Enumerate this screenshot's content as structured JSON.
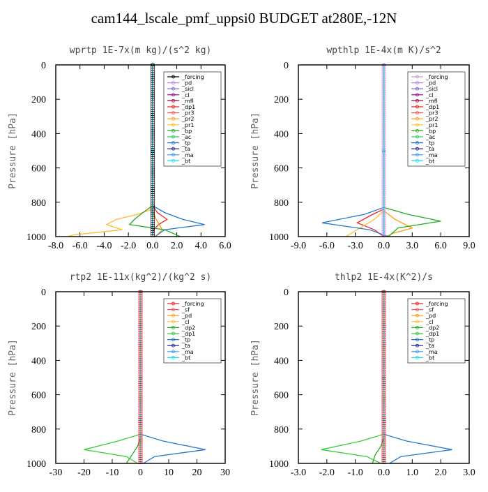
{
  "figure_title": "cam144_lscale_pmf_uppsi0  BUDGET at280E,-12N",
  "chart_data": [
    {
      "type": "line",
      "title": "wprtp  1E-7x(m kg)/(s^2 kg)",
      "ylabel": "Pressure [hPa]",
      "xlim": [
        -8,
        6
      ],
      "xticks": [
        "-8.0",
        "-6.0",
        "-4.0",
        "-2.0",
        "0.0",
        "2.0",
        "4.0",
        "6.0"
      ],
      "ylim": [
        1000,
        0
      ],
      "yticks": [
        "0",
        "200",
        "400",
        "600",
        "800",
        "1000"
      ],
      "legend_position": "top-right",
      "series": [
        {
          "name": "_forcing",
          "color": "#000000",
          "marker": "o",
          "p": [
            0,
            500,
            1000
          ],
          "x": [
            0,
            0,
            0
          ]
        },
        {
          "name": "_pd",
          "color": "#bb88dd",
          "marker": "s",
          "p": [
            0,
            500,
            1000
          ],
          "x": [
            0,
            0,
            0
          ]
        },
        {
          "name": "_sicl",
          "color": "#7755cc",
          "marker": "^",
          "p": [
            0,
            500,
            1000
          ],
          "x": [
            0,
            0,
            0
          ]
        },
        {
          "name": "_cl",
          "color": "#990099",
          "marker": ">",
          "p": [
            0,
            500,
            1000
          ],
          "x": [
            0,
            0,
            0
          ]
        },
        {
          "name": "_mfl",
          "color": "#aa0044",
          "marker": "<",
          "p": [
            0,
            500,
            1000
          ],
          "x": [
            0,
            0,
            0
          ]
        },
        {
          "name": "_dp1",
          "color": "#ee2222",
          "marker": "o",
          "p": [
            0,
            820,
            860,
            900,
            930,
            960,
            990,
            1000
          ],
          "x": [
            0,
            0,
            0.4,
            1.2,
            0.5,
            0.1,
            0,
            0
          ]
        },
        {
          "name": "_pr3",
          "color": "#ff5555",
          "marker": "s",
          "p": [
            0,
            500,
            1000
          ],
          "x": [
            0,
            0,
            0
          ]
        },
        {
          "name": "_pr2",
          "color": "#ff9900",
          "marker": "^",
          "p": [
            0,
            850,
            900,
            960,
            990,
            1000
          ],
          "x": [
            0,
            0,
            0.3,
            0.8,
            0.4,
            0.2
          ]
        },
        {
          "name": "_pr1",
          "color": "#ffbb33",
          "marker": "v",
          "p": [
            0,
            840,
            870,
            900,
            930,
            960,
            990,
            1000
          ],
          "x": [
            0,
            0,
            -1.2,
            -3.0,
            -3.8,
            -2.5,
            -6.5,
            -7.0
          ]
        },
        {
          "name": "_bp",
          "color": "#22aa22",
          "marker": "x",
          "p": [
            0,
            820,
            860,
            900,
            930,
            960,
            1000
          ],
          "x": [
            0,
            0,
            -0.8,
            -1.5,
            -1.9,
            1.0,
            2.3
          ]
        },
        {
          "name": "_ac",
          "color": "#33cc66",
          "marker": "o",
          "p": [
            0,
            500,
            1000
          ],
          "x": [
            0,
            0,
            0
          ]
        },
        {
          "name": "_tp",
          "color": "#2277cc",
          "marker": "x",
          "p": [
            0,
            820,
            860,
            900,
            930,
            960,
            1000
          ],
          "x": [
            0,
            0,
            1.0,
            2.5,
            4.3,
            1.0,
            0.2
          ]
        },
        {
          "name": "_ta",
          "color": "#111188",
          "marker": "+",
          "p": [
            0,
            500,
            1000
          ],
          "x": [
            0,
            0,
            0
          ]
        },
        {
          "name": "_ma",
          "color": "#3399ff",
          "marker": "-",
          "p": [
            0,
            500,
            1000
          ],
          "x": [
            0,
            0,
            0
          ]
        },
        {
          "name": "_bt",
          "color": "#22ddee",
          "marker": "d",
          "p": [
            0,
            500,
            1000
          ],
          "x": [
            0,
            0,
            0
          ]
        }
      ]
    },
    {
      "type": "line",
      "title": "wpthlp  1E-4x(m K)/s^2",
      "ylabel": "Pressure [hPa]",
      "xlim": [
        -9,
        9
      ],
      "xticks": [
        "-9.0",
        "-6.0",
        "-3.0",
        "0.0",
        "3.0",
        "6.0",
        "9.0"
      ],
      "ylim": [
        1000,
        0
      ],
      "yticks": [
        "0",
        "200",
        "400",
        "600",
        "800",
        "1000"
      ],
      "legend_position": "top-right",
      "series": [
        {
          "name": "_forcing",
          "color": "#cc99dd",
          "marker": "o",
          "p": [
            0,
            500,
            1000
          ],
          "x": [
            0,
            0,
            0
          ]
        },
        {
          "name": "_pd",
          "color": "#bb88dd",
          "marker": "s",
          "p": [
            0,
            500,
            1000
          ],
          "x": [
            0,
            0,
            0
          ]
        },
        {
          "name": "_sicl",
          "color": "#7755cc",
          "marker": "^",
          "p": [
            0,
            500,
            1000
          ],
          "x": [
            0,
            0,
            0
          ]
        },
        {
          "name": "_cl",
          "color": "#990099",
          "marker": ">",
          "p": [
            0,
            500,
            1000
          ],
          "x": [
            0,
            0,
            0
          ]
        },
        {
          "name": "_mfl",
          "color": "#aa0044",
          "marker": "<",
          "p": [
            0,
            500,
            1000
          ],
          "x": [
            0,
            0,
            0
          ]
        },
        {
          "name": "_dp1",
          "color": "#ee2222",
          "marker": "o",
          "p": [
            0,
            840,
            880,
            920,
            960,
            1000
          ],
          "x": [
            0,
            0,
            -1.5,
            -2.8,
            -1.0,
            0
          ]
        },
        {
          "name": "_pr3",
          "color": "#ff5555",
          "marker": "s",
          "p": [
            0,
            500,
            1000
          ],
          "x": [
            0,
            0,
            0
          ]
        },
        {
          "name": "_pr2",
          "color": "#ff9900",
          "marker": "^",
          "p": [
            0,
            850,
            900,
            950,
            980,
            1000
          ],
          "x": [
            0,
            0,
            1.2,
            3.0,
            1.0,
            0.3
          ]
        },
        {
          "name": "_pr1",
          "color": "#ffbb33",
          "marker": "v",
          "p": [
            0,
            850,
            900,
            950,
            1000
          ],
          "x": [
            0,
            0,
            -1.0,
            -2.5,
            -4.0
          ]
        },
        {
          "name": "_bp",
          "color": "#22aa22",
          "marker": "x",
          "p": [
            0,
            830,
            870,
            910,
            950,
            1000
          ],
          "x": [
            0,
            0,
            2.5,
            6.0,
            1.5,
            0.5
          ]
        },
        {
          "name": "_ac",
          "color": "#33cc66",
          "marker": "o",
          "p": [
            0,
            500,
            1000
          ],
          "x": [
            0,
            0,
            0
          ]
        },
        {
          "name": "_tp",
          "color": "#2277cc",
          "marker": "x",
          "p": [
            0,
            830,
            870,
            920,
            960,
            1000
          ],
          "x": [
            0,
            0,
            -2.0,
            -6.5,
            -1.5,
            0.5
          ]
        },
        {
          "name": "_ta",
          "color": "#111188",
          "marker": "+",
          "p": [
            0,
            500,
            1000
          ],
          "x": [
            0,
            0,
            0
          ]
        },
        {
          "name": "_ma",
          "color": "#3399ff",
          "marker": "-",
          "p": [
            0,
            500,
            1000
          ],
          "x": [
            0,
            0,
            0
          ]
        },
        {
          "name": "_bt",
          "color": "#22ddee",
          "marker": "d",
          "p": [
            0,
            500,
            1000
          ],
          "x": [
            0,
            0,
            0
          ]
        }
      ]
    },
    {
      "type": "line",
      "title": "rtp2  1E-11x(kg^2)/(kg^2 s)",
      "ylabel": "Pressure [hPa]",
      "xlim": [
        -30,
        30
      ],
      "xticks": [
        "-30",
        "-20",
        "-10",
        "0",
        "10",
        "20",
        "30"
      ],
      "ylim": [
        1000,
        0
      ],
      "yticks": [
        "0",
        "200",
        "400",
        "600",
        "800",
        "1000"
      ],
      "legend_position": "top-right",
      "series": [
        {
          "name": "_forcing",
          "color": "#ee2222",
          "marker": "o",
          "p": [
            0,
            500,
            1000
          ],
          "x": [
            0,
            0,
            0
          ]
        },
        {
          "name": "_sf",
          "color": "#ff5555",
          "marker": "s",
          "p": [
            0,
            500,
            1000
          ],
          "x": [
            0,
            0,
            0
          ]
        },
        {
          "name": "_pd",
          "color": "#ff9900",
          "marker": "^",
          "p": [
            0,
            500,
            1000
          ],
          "x": [
            0,
            0,
            0
          ]
        },
        {
          "name": "_cl",
          "color": "#ffbb33",
          "marker": "v",
          "p": [
            0,
            500,
            1000
          ],
          "x": [
            0,
            0,
            0
          ]
        },
        {
          "name": "_dp2",
          "color": "#22aa22",
          "marker": "x",
          "p": [
            0,
            850,
            900,
            950,
            1000
          ],
          "x": [
            0,
            0,
            -1.0,
            -3.0,
            -5.0
          ]
        },
        {
          "name": "_dp1",
          "color": "#33cc33",
          "marker": "o",
          "p": [
            0,
            830,
            870,
            920,
            960,
            1000
          ],
          "x": [
            0,
            0,
            -8.0,
            -20.0,
            -5.0,
            -1.0
          ]
        },
        {
          "name": "_tp",
          "color": "#2277cc",
          "marker": "x",
          "p": [
            0,
            830,
            870,
            920,
            960,
            1000
          ],
          "x": [
            0,
            0,
            8.0,
            23.0,
            5.0,
            1.0
          ]
        },
        {
          "name": "_ta",
          "color": "#111188",
          "marker": "+",
          "p": [
            0,
            500,
            1000
          ],
          "x": [
            0,
            0,
            0
          ]
        },
        {
          "name": "_ma",
          "color": "#3399ff",
          "marker": "-",
          "p": [
            0,
            500,
            1000
          ],
          "x": [
            0,
            0,
            0
          ]
        },
        {
          "name": "_bt",
          "color": "#22ddee",
          "marker": "d",
          "p": [
            0,
            500,
            1000
          ],
          "x": [
            0,
            0,
            0
          ]
        }
      ]
    },
    {
      "type": "line",
      "title": "thlp2  1E-4x(K^2)/s",
      "ylabel": "Pressure [hPa]",
      "xlim": [
        -3,
        3
      ],
      "xticks": [
        "-3.0",
        "-2.0",
        "-1.0",
        "0.0",
        "1.0",
        "2.0",
        "3.0"
      ],
      "ylim": [
        1000,
        0
      ],
      "yticks": [
        "0",
        "200",
        "400",
        "600",
        "800",
        "1000"
      ],
      "legend_position": "top-right",
      "series": [
        {
          "name": "_forcing",
          "color": "#ee2222",
          "marker": "o",
          "p": [
            0,
            500,
            1000
          ],
          "x": [
            0,
            0,
            0
          ]
        },
        {
          "name": "_sf",
          "color": "#ff5555",
          "marker": "s",
          "p": [
            0,
            500,
            1000
          ],
          "x": [
            0,
            0,
            0
          ]
        },
        {
          "name": "_pd",
          "color": "#ff9900",
          "marker": "^",
          "p": [
            0,
            500,
            1000
          ],
          "x": [
            0,
            0,
            0
          ]
        },
        {
          "name": "_cl",
          "color": "#ffbb33",
          "marker": "v",
          "p": [
            0,
            500,
            1000
          ],
          "x": [
            0,
            0,
            0
          ]
        },
        {
          "name": "_dp2",
          "color": "#22aa22",
          "marker": "x",
          "p": [
            0,
            850,
            900,
            950,
            1000
          ],
          "x": [
            0,
            0,
            -0.1,
            -0.3,
            -0.4
          ]
        },
        {
          "name": "_dp1",
          "color": "#33cc33",
          "marker": "o",
          "p": [
            0,
            830,
            870,
            920,
            960,
            1000
          ],
          "x": [
            0,
            0,
            -0.8,
            -2.2,
            -0.6,
            -0.1
          ]
        },
        {
          "name": "_tp",
          "color": "#2277cc",
          "marker": "x",
          "p": [
            0,
            830,
            870,
            920,
            960,
            1000
          ],
          "x": [
            0,
            0,
            0.8,
            2.4,
            0.6,
            0.2
          ]
        },
        {
          "name": "_ta",
          "color": "#111188",
          "marker": "+",
          "p": [
            0,
            500,
            1000
          ],
          "x": [
            0,
            0,
            0
          ]
        },
        {
          "name": "_ma",
          "color": "#3399ff",
          "marker": "-",
          "p": [
            0,
            500,
            1000
          ],
          "x": [
            0,
            0,
            0
          ]
        },
        {
          "name": "_bt",
          "color": "#22ddee",
          "marker": "d",
          "p": [
            0,
            500,
            1000
          ],
          "x": [
            0,
            0,
            0
          ]
        }
      ]
    }
  ]
}
